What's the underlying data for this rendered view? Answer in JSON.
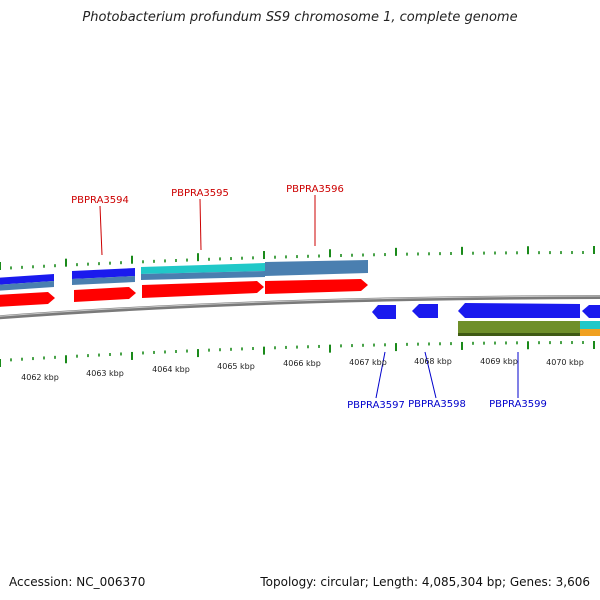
{
  "title": "Photobacterium profundum SS9 chromosome 1, complete genome",
  "footer": {
    "accession": "Accession: NC_006370",
    "summary": "Topology: circular; Length: 4,085,304 bp; Genes: 3,606"
  },
  "scale_labels": [
    "4062 kbp",
    "4063 kbp",
    "4064 kbp",
    "4065 kbp",
    "4066 kbp",
    "4067 kbp",
    "4068 kbp",
    "4069 kbp",
    "4070 kbp"
  ],
  "gene_labels_top": [
    "PBPRA3594",
    "PBPRA3595",
    "PBPRA3596"
  ],
  "gene_labels_bottom": [
    "PBPRA3597",
    "PBPRA3598",
    "PBPRA3599"
  ],
  "colors": {
    "forward_cds": "#ff0000",
    "reverse_cds": "#0000ee",
    "top_label": "#cc0000",
    "bottom_label": "#0000cc",
    "tick": "#1a8a1a",
    "backbone": "#8a8a8a",
    "blue_track": "#1a1aee",
    "steel_track": "#4a7fb0",
    "cyan_track": "#20c8c8",
    "olive_track": "#6f8f2a",
    "orange_track": "#f0a020"
  }
}
